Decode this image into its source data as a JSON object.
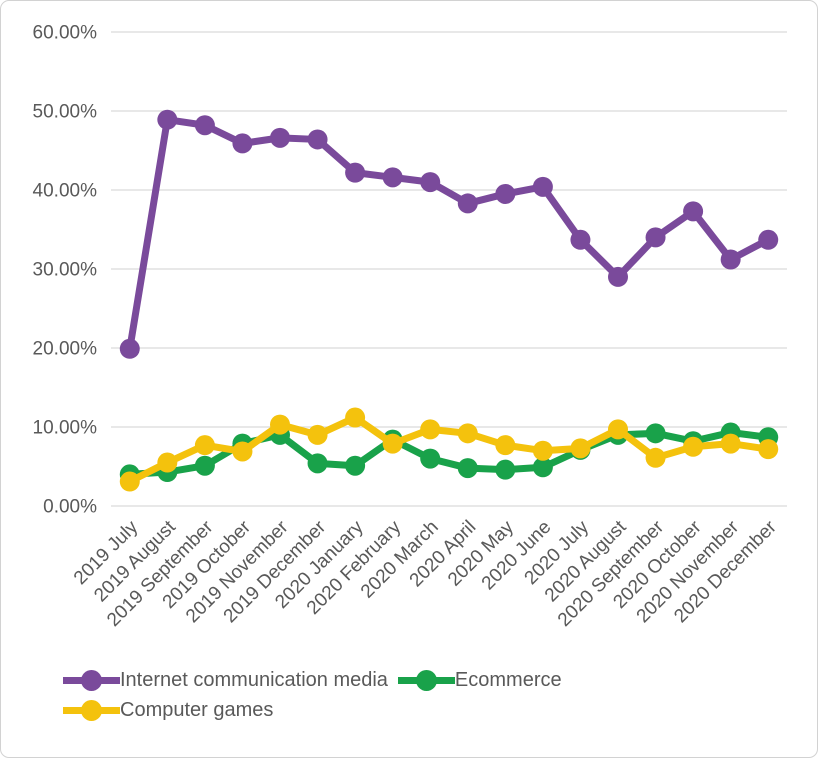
{
  "chart_data": {
    "type": "line",
    "title": "",
    "categories": [
      "2019 July",
      "2019 August",
      "2019 September",
      "2019 October",
      "2019 November",
      "2019 December",
      "2020 January",
      "2020 February",
      "2020 March",
      "2020 April",
      "2020 May",
      "2020 June",
      "2020 July",
      "2020 August",
      "2020 September",
      "2020 October",
      "2020 November",
      "2020 December"
    ],
    "series": [
      {
        "name": "Internet communication media",
        "color": "#7A4A9B",
        "values": [
          19.9,
          48.9,
          48.2,
          45.9,
          46.6,
          46.4,
          42.2,
          41.6,
          41.0,
          38.3,
          39.5,
          40.4,
          33.7,
          29.0,
          34.0,
          37.3,
          31.2,
          33.7
        ]
      },
      {
        "name": "Ecommerce",
        "color": "#19A24A",
        "values": [
          4.0,
          4.3,
          5.1,
          7.9,
          9.0,
          5.4,
          5.1,
          8.4,
          6.0,
          4.8,
          4.6,
          4.9,
          7.1,
          9.0,
          9.2,
          8.2,
          9.3,
          8.7
        ]
      },
      {
        "name": "Computer games",
        "color": "#F4C20D",
        "values": [
          3.1,
          5.5,
          7.7,
          6.9,
          10.3,
          9.0,
          11.2,
          7.9,
          9.7,
          9.2,
          7.7,
          7.0,
          7.3,
          9.7,
          6.1,
          7.5,
          7.9,
          7.2
        ]
      }
    ],
    "y_ticks": [
      "0.00%",
      "10.00%",
      "20.00%",
      "30.00%",
      "40.00%",
      "50.00%",
      "60.00%"
    ],
    "ylim": [
      0,
      60
    ],
    "grid": "horizontal",
    "gridline_color": "#D9D9D9",
    "text_color": "#595959",
    "legend_position": "bottom-left"
  }
}
